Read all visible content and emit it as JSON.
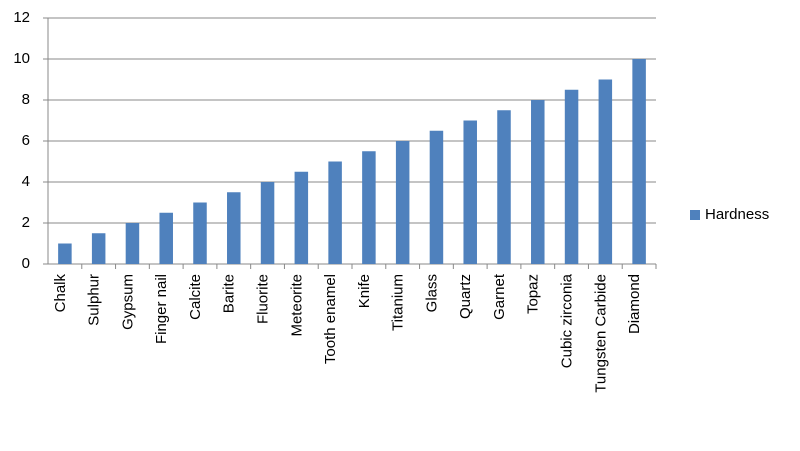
{
  "chart_data": {
    "type": "bar",
    "categories": [
      "Chalk",
      "Sulphur",
      "Gypsum",
      "Finger nail",
      "Calcite",
      "Barite",
      "Fluorite",
      "Meteorite",
      "Tooth enamel",
      "Knife",
      "Titanium",
      "Glass",
      "Quartz",
      "Garnet",
      "Topaz",
      "Cubic zirconia",
      "Tungsten Carbide",
      "Diamond"
    ],
    "series": [
      {
        "name": "Hardness",
        "color": "#4f81bd",
        "values": [
          1,
          1.5,
          2,
          2.5,
          3,
          3.5,
          4,
          4.5,
          5,
          5.5,
          6,
          6.5,
          7,
          7.5,
          8,
          8.5,
          9,
          10
        ]
      }
    ],
    "ylim": [
      0,
      12
    ],
    "yticks": [
      0,
      2,
      4,
      6,
      8,
      10,
      12
    ],
    "grid": true,
    "legend": "right"
  }
}
